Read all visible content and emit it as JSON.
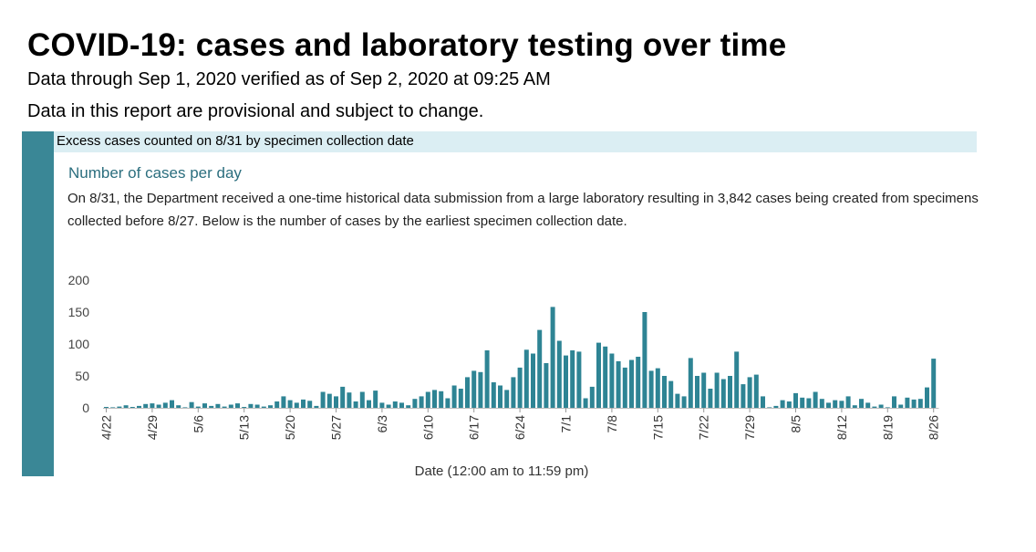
{
  "header": {
    "title": "COVID-19: cases and laboratory testing over time",
    "subtitle": "Data through Sep 1, 2020 verified as of Sep 2, 2020 at 09:25 AM",
    "disclaimer": "Data in this report are provisional and subject to change."
  },
  "banner": {
    "text": "Excess cases counted on 8/31 by specimen collection date"
  },
  "section": {
    "heading": "Number of cases per day",
    "note": "On 8/31, the Department received a one-time historical data submission from a large laboratory resulting in 3,842 cases being created from specimens collected before 8/27. Below is the number of cases by the earliest specimen collection date."
  },
  "colors": {
    "bar": "#2e8494",
    "accent": "#3a8796",
    "banner_bg": "#dbeef3",
    "heading": "#2b6e7e"
  },
  "chart_data": {
    "type": "bar",
    "title": "Number of cases per day",
    "xlabel": "Date (12:00 am to 11:59 pm)",
    "ylabel": "",
    "ylim": [
      0,
      200
    ],
    "yticks": [
      0,
      50,
      100,
      150,
      200
    ],
    "start_date": "4/22",
    "tick_labels": [
      {
        "index": 0,
        "label": "4/22"
      },
      {
        "index": 7,
        "label": "4/29"
      },
      {
        "index": 14,
        "label": "5/6"
      },
      {
        "index": 21,
        "label": "5/13"
      },
      {
        "index": 28,
        "label": "5/20"
      },
      {
        "index": 35,
        "label": "5/27"
      },
      {
        "index": 42,
        "label": "6/3"
      },
      {
        "index": 49,
        "label": "6/10"
      },
      {
        "index": 56,
        "label": "6/17"
      },
      {
        "index": 63,
        "label": "6/24"
      },
      {
        "index": 70,
        "label": "7/1"
      },
      {
        "index": 77,
        "label": "7/8"
      },
      {
        "index": 84,
        "label": "7/15"
      },
      {
        "index": 91,
        "label": "7/22"
      },
      {
        "index": 98,
        "label": "7/29"
      },
      {
        "index": 105,
        "label": "8/5"
      },
      {
        "index": 112,
        "label": "8/12"
      },
      {
        "index": 119,
        "label": "8/19"
      },
      {
        "index": 126,
        "label": "8/26"
      }
    ],
    "values": [
      1,
      0,
      2,
      4,
      1,
      3,
      6,
      7,
      5,
      8,
      12,
      4,
      0,
      9,
      2,
      7,
      3,
      6,
      2,
      5,
      7,
      1,
      6,
      5,
      2,
      4,
      10,
      18,
      12,
      8,
      13,
      11,
      3,
      25,
      22,
      18,
      33,
      24,
      10,
      25,
      12,
      27,
      8,
      5,
      10,
      8,
      4,
      14,
      18,
      25,
      28,
      26,
      15,
      35,
      30,
      48,
      58,
      56,
      90,
      40,
      35,
      28,
      48,
      63,
      91,
      85,
      122,
      70,
      158,
      105,
      82,
      90,
      88,
      15,
      33,
      102,
      96,
      85,
      73,
      63,
      75,
      80,
      150,
      58,
      62,
      50,
      42,
      22,
      18,
      78,
      50,
      55,
      30,
      55,
      45,
      50,
      88,
      37,
      48,
      52,
      18,
      0,
      3,
      12,
      10,
      23,
      16,
      15,
      25,
      14,
      8,
      12,
      11,
      18,
      4,
      14,
      8,
      2,
      5,
      0,
      18,
      5,
      16,
      13,
      14,
      32,
      77
    ]
  }
}
